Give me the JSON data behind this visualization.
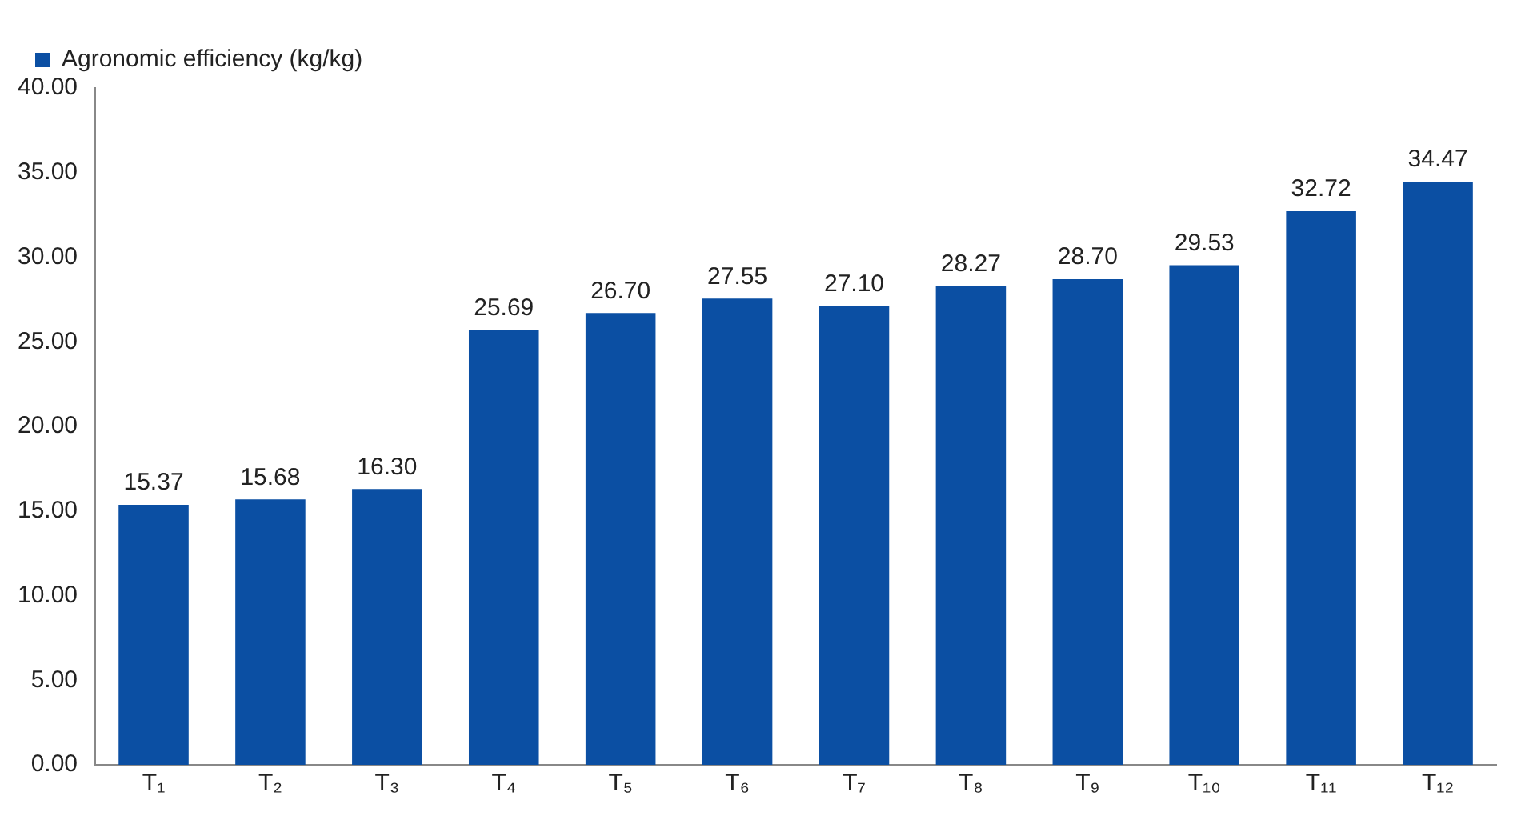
{
  "chart_data": {
    "type": "bar",
    "categories": [
      "T₁",
      "T₂",
      "T₃",
      "T₄",
      "T₅",
      "T₆",
      "T₇",
      "T₈",
      "T₉",
      "T₁₀",
      "T₁₁",
      "T₁₂"
    ],
    "series": [
      {
        "name": "Agronomic efficiency (kg/kg)",
        "color": "#0b4fa3",
        "values": [
          15.37,
          15.68,
          16.3,
          25.69,
          26.7,
          27.55,
          27.1,
          28.27,
          28.7,
          29.53,
          32.72,
          34.47
        ],
        "value_labels": [
          "15.37",
          "15.68",
          "16.30",
          "25.69",
          "26.70",
          "27.55",
          "27.10",
          "28.27",
          "28.70",
          "29.53",
          "32.72",
          "34.47"
        ]
      }
    ],
    "ylim": [
      0,
      40
    ],
    "yticks": [
      {
        "value": 0,
        "label": "0.00"
      },
      {
        "value": 5,
        "label": "5.00"
      },
      {
        "value": 10,
        "label": "10.00"
      },
      {
        "value": 15,
        "label": "15.00"
      },
      {
        "value": 20,
        "label": "20.00"
      },
      {
        "value": 25,
        "label": "25.00"
      },
      {
        "value": 30,
        "label": "30.00"
      },
      {
        "value": 35,
        "label": "35.00"
      },
      {
        "value": 40,
        "label": "40.00"
      }
    ],
    "grid": false,
    "legend": "top left"
  }
}
